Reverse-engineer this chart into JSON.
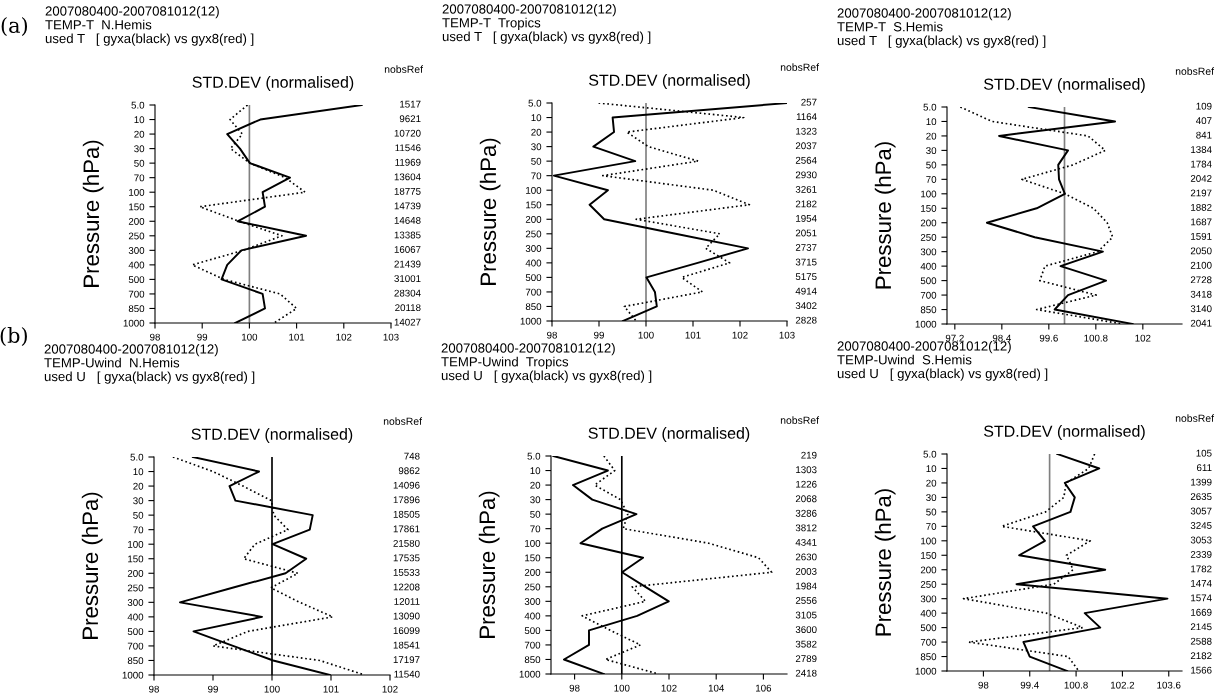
{
  "chart_data": [
    {
      "type": "line",
      "orientation": "horizontal",
      "title": "2007080400-2007081012(12)\nTEMP-T  N.Hemis\nused T   [ gyxa(black) vs gyx8(red) ]",
      "subtitle": "STD.DEV (normalised)",
      "ylabel": "Pressure (hPa)",
      "y2label": "nobsRef",
      "annotations": [
        "(a)"
      ],
      "categories": [
        "5.0",
        "10",
        "20",
        "30",
        "50",
        "70",
        "100",
        "150",
        "200",
        "250",
        "300",
        "400",
        "500",
        "700",
        "850",
        "1000"
      ],
      "y2_categories": [
        "1517",
        "9621",
        "10720",
        "11546",
        "11969",
        "13604",
        "18775",
        "14739",
        "14648",
        "13385",
        "16067",
        "21439",
        "31001",
        "28304",
        "20118",
        "14027"
      ],
      "series": [
        {
          "color": "#000000",
          "line_style": "solid",
          "values": [
            102.38,
            100.23,
            99.53,
            99.8,
            100.01,
            100.86,
            100.28,
            100.33,
            99.75,
            101.2,
            99.83,
            99.53,
            99.41,
            100.28,
            100.33,
            99.7
          ]
        },
        {
          "color": "#000000",
          "line_style": "dotted",
          "values": [
            99.96,
            99.59,
            99.85,
            99.6,
            100.01,
            100.76,
            101.18,
            98.95,
            99.78,
            100.69,
            99.87,
            98.79,
            99.46,
            100.65,
            101.0,
            100.52
          ]
        }
      ],
      "xlim": [
        98,
        103
      ],
      "xticks": [
        98,
        99,
        100,
        101,
        102,
        103
      ],
      "ref_lines": [
        {
          "axis": "x",
          "value": 100,
          "color": "#808080"
        }
      ]
    },
    {
      "type": "line",
      "orientation": "horizontal",
      "title": "2007080400-2007081012(12)\nTEMP-T  Tropics\nused T   [ gyxa(black) vs gyx8(red) ]",
      "subtitle": "STD.DEV (normalised)",
      "ylabel": "Pressure (hPa)",
      "y2label": "nobsRef",
      "categories": [
        "5.0",
        "10",
        "20",
        "30",
        "50",
        "70",
        "100",
        "150",
        "200",
        "250",
        "300",
        "400",
        "500",
        "700",
        "850",
        "1000"
      ],
      "y2_categories": [
        "257",
        "1164",
        "1323",
        "2037",
        "2564",
        "2930",
        "3261",
        "2182",
        "1954",
        "2051",
        "2737",
        "3715",
        "5175",
        "4914",
        "3402",
        "2828"
      ],
      "series": [
        {
          "color": "#000000",
          "line_style": "solid",
          "values": [
            103.0,
            99.29,
            99.32,
            98.88,
            99.77,
            98.04,
            99.19,
            98.8,
            99.11,
            100.63,
            102.17,
            101.1,
            100.01,
            100.19,
            100.23,
            99.51
          ]
        },
        {
          "color": "#000000",
          "line_style": "dotted",
          "values": [
            98.99,
            102.08,
            99.59,
            100.05,
            101.11,
            99.08,
            101.43,
            102.2,
            99.79,
            101.57,
            101.27,
            101.78,
            100.76,
            101.2,
            99.54,
            99.79
          ]
        }
      ],
      "xlim": [
        98,
        103
      ],
      "xticks": [
        98,
        99,
        100,
        101,
        102,
        103
      ],
      "ref_lines": [
        {
          "axis": "x",
          "value": 100,
          "color": "#808080"
        }
      ]
    },
    {
      "type": "line",
      "orientation": "horizontal",
      "title": "2007080400-2007081012(12)\nTEMP-T  S.Hemis\nused T   [ gyxa(black) vs gyx8(red) ]",
      "subtitle": "STD.DEV (normalised)",
      "ylabel": "Pressure (hPa)",
      "y2label": "nobsRef",
      "categories": [
        "5.0",
        "10",
        "20",
        "30",
        "50",
        "70",
        "100",
        "150",
        "200",
        "250",
        "300",
        "400",
        "500",
        "700",
        "850",
        "1000"
      ],
      "y2_categories": [
        "109",
        "407",
        "841",
        "1384",
        "1784",
        "2042",
        "2197",
        "1882",
        "1687",
        "1591",
        "2050",
        "2100",
        "2728",
        "3418",
        "3140",
        "2041"
      ],
      "series": [
        {
          "color": "#000000",
          "line_style": "solid",
          "values": [
            99.09,
            101.29,
            98.33,
            100.09,
            99.84,
            99.86,
            100.01,
            99.29,
            98.02,
            99.24,
            100.98,
            99.9,
            101.06,
            100.09,
            99.75,
            101.74
          ]
        },
        {
          "color": "#000000",
          "line_style": "dotted",
          "values": [
            97.34,
            98.15,
            100.6,
            101.04,
            100.22,
            98.91,
            100.01,
            100.74,
            101.09,
            101.23,
            100.85,
            99.5,
            99.37,
            100.81,
            99.29,
            101.49
          ]
        }
      ],
      "xlim": [
        97,
        103
      ],
      "xticks": [
        97.2,
        98.4,
        99.6,
        100.8,
        102
      ],
      "ref_lines": [
        {
          "axis": "x",
          "value": 100,
          "color": "#808080"
        }
      ]
    },
    {
      "type": "line",
      "orientation": "horizontal",
      "title": "2007080400-2007081012(12)\nTEMP-Uwind  N.Hemis\nused U   [ gyxa(black) vs gyx8(red) ]",
      "subtitle": "STD.DEV (normalised)",
      "ylabel": "Pressure (hPa)",
      "y2label": "nobsRef",
      "annotations": [
        "(b)"
      ],
      "categories": [
        "5.0",
        "10",
        "20",
        "30",
        "50",
        "70",
        "100",
        "150",
        "200",
        "250",
        "300",
        "400",
        "500",
        "700",
        "850",
        "1000"
      ],
      "y2_categories": [
        "748",
        "9862",
        "14096",
        "17896",
        "18505",
        "17861",
        "21580",
        "17535",
        "15533",
        "12208",
        "12011",
        "13090",
        "16099",
        "18541",
        "17197",
        "11540"
      ],
      "series": [
        {
          "color": "#000000",
          "line_style": "solid",
          "values": [
            98.66,
            99.78,
            99.28,
            99.38,
            100.69,
            100.64,
            100.01,
            100.58,
            100.23,
            99.33,
            98.44,
            99.83,
            98.67,
            99.34,
            100.02,
            100.98
          ]
        },
        {
          "color": "#000000",
          "line_style": "dotted",
          "values": [
            98.32,
            99.0,
            99.51,
            99.99,
            100.03,
            100.27,
            99.71,
            99.52,
            100.44,
            99.98,
            100.47,
            101.03,
            99.59,
            99.0,
            100.81,
            101.57
          ]
        }
      ],
      "xlim": [
        98,
        102
      ],
      "xticks": [
        98,
        99,
        100,
        101,
        102
      ],
      "ref_lines": [
        {
          "axis": "x",
          "value": 100,
          "color": "#000000"
        }
      ]
    },
    {
      "type": "line",
      "orientation": "horizontal",
      "title": "2007080400-2007081012(12)\nTEMP-Uwind  Tropics\nused U   [ gyxa(black) vs gyx8(red) ]",
      "subtitle": "STD.DEV (normalised)",
      "ylabel": "Pressure (hPa)",
      "y2label": "nobsRef",
      "categories": [
        "5.0",
        "10",
        "20",
        "30",
        "50",
        "70",
        "100",
        "150",
        "200",
        "250",
        "300",
        "400",
        "500",
        "700",
        "850",
        "1000"
      ],
      "y2_categories": [
        "219",
        "1303",
        "1226",
        "2068",
        "3286",
        "3812",
        "4341",
        "2630",
        "2003",
        "1984",
        "2556",
        "3105",
        "3600",
        "3582",
        "2789",
        "2418"
      ],
      "series": [
        {
          "color": "#000000",
          "line_style": "solid",
          "values": [
            97.1,
            99.41,
            97.93,
            98.75,
            100.62,
            99.17,
            98.25,
            100.9,
            100.01,
            101.0,
            101.99,
            100.65,
            98.61,
            98.61,
            97.55,
            99.24
          ]
        },
        {
          "color": "#000000",
          "line_style": "dotted",
          "values": [
            99.24,
            99.7,
            98.85,
            99.94,
            100.25,
            100.06,
            103.68,
            105.79,
            106.35,
            100.44,
            101.0,
            98.32,
            99.52,
            100.79,
            99.31,
            101.56
          ]
        }
      ],
      "xlim": [
        97,
        107
      ],
      "xticks": [
        98,
        100,
        102,
        104,
        106
      ],
      "ref_lines": [
        {
          "axis": "x",
          "value": 100,
          "color": "#000000"
        }
      ]
    },
    {
      "type": "line",
      "orientation": "horizontal",
      "title": "2007080400-2007081012(12)\nTEMP-Uwind  S.Hemis\nused U   [ gyxa(black) vs gyx8(red) ]",
      "subtitle": "STD.DEV (normalised)",
      "ylabel": "Pressure (hPa)",
      "y2label": "nobsRef",
      "categories": [
        "5.0",
        "10",
        "20",
        "30",
        "50",
        "70",
        "100",
        "150",
        "200",
        "250",
        "300",
        "400",
        "500",
        "700",
        "850",
        "1000"
      ],
      "y2_categories": [
        "105",
        "611",
        "1399",
        "2635",
        "3057",
        "3245",
        "3053",
        "2339",
        "1782",
        "1474",
        "1574",
        "1669",
        "2145",
        "2588",
        "2182",
        "1566"
      ],
      "series": [
        {
          "color": "#000000",
          "line_style": "solid",
          "values": [
            100.23,
            101.5,
            100.46,
            100.76,
            100.63,
            99.5,
            99.86,
            99.08,
            101.68,
            99.0,
            103.56,
            101.06,
            101.53,
            99.21,
            99.4,
            100.53
          ]
        },
        {
          "color": "#000000",
          "line_style": "dotted",
          "values": [
            101.36,
            101.18,
            100.5,
            100.43,
            99.88,
            98.55,
            101.23,
            100.51,
            100.71,
            100.13,
            97.4,
            99.9,
            101.0,
            97.56,
            100.56,
            100.88
          ]
        }
      ],
      "xlim": [
        96.9,
        104
      ],
      "xticks": [
        98,
        99.4,
        100.8,
        102.2,
        103.6
      ],
      "ref_lines": [
        {
          "axis": "x",
          "value": 100,
          "color": "#808080"
        }
      ]
    }
  ]
}
